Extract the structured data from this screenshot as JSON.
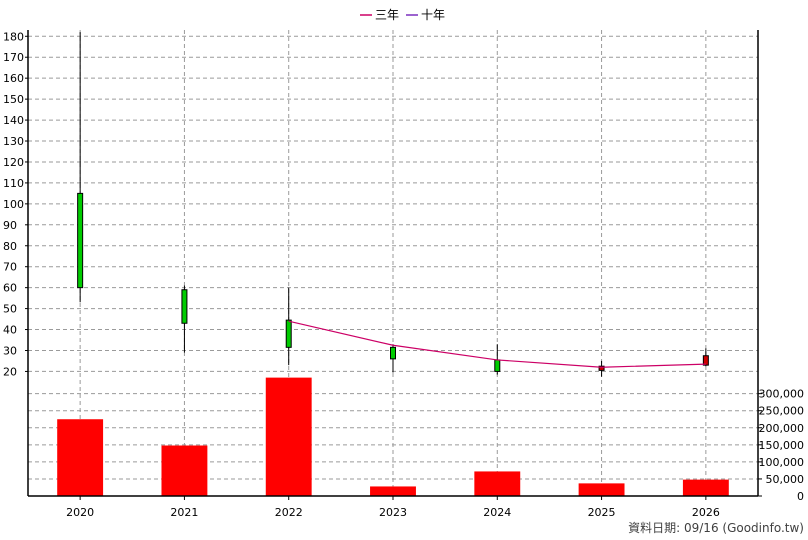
{
  "chart_data": {
    "type": "bar",
    "legend_position": "top-center",
    "grid": true,
    "categories": [
      "2020",
      "2021",
      "2022",
      "2023",
      "2024",
      "2025",
      "2026"
    ],
    "legend": [
      {
        "name": "三年",
        "color": "#cc0066"
      },
      {
        "name": "十年",
        "color": "#7b2fbf"
      }
    ],
    "price_axis": {
      "ticks": [
        "20",
        "30",
        "40",
        "50",
        "60",
        "70",
        "80",
        "90",
        "100",
        "110",
        "120",
        "130",
        "140",
        "150",
        "160",
        "170",
        "180"
      ],
      "range": [
        14,
        183
      ]
    },
    "volume_axis": {
      "ticks": [
        "0",
        "50,000",
        "100,000",
        "150,000",
        "200,000",
        "250,000",
        "300,000"
      ],
      "range": [
        0,
        340000
      ]
    },
    "candles": [
      {
        "year": "2020",
        "open": 60,
        "high": 182,
        "low": 53,
        "close": 105,
        "color": "#00cc00"
      },
      {
        "year": "2021",
        "open": 43,
        "high": 61,
        "low": 29,
        "close": 59,
        "color": "#00cc00"
      },
      {
        "year": "2022",
        "open": 31.5,
        "high": 60,
        "low": 23,
        "close": 44.5,
        "color": "#00cc00"
      },
      {
        "year": "2023",
        "open": 26,
        "high": 33,
        "low": 19.5,
        "close": 31.5,
        "color": "#00cc00"
      },
      {
        "year": "2024",
        "open": 20,
        "high": 33,
        "low": 18.5,
        "close": 25.5,
        "color": "#00cc00"
      },
      {
        "year": "2025",
        "open": 22.5,
        "high": 25,
        "low": 17.5,
        "close": 20.5,
        "color": "#cc0000"
      },
      {
        "year": "2026",
        "open": 23,
        "high": 31,
        "low": 22.5,
        "close": 27.5,
        "color": "#cc0000"
      }
    ],
    "line_series": [
      {
        "name": "三年",
        "color": "#cc0066",
        "x": [
          "2022",
          "2023",
          "2024",
          "2025",
          "2026"
        ],
        "values": [
          44,
          32.5,
          25.5,
          22,
          23.5
        ]
      }
    ],
    "volume": [
      {
        "year": "2020",
        "value": 225000
      },
      {
        "year": "2021",
        "value": 148000
      },
      {
        "year": "2022",
        "value": 347000
      },
      {
        "year": "2023",
        "value": 28000
      },
      {
        "year": "2024",
        "value": 72000
      },
      {
        "year": "2025",
        "value": 37000
      },
      {
        "year": "2026",
        "value": 48000
      }
    ],
    "volume_color": "#ff0000",
    "footer": "資料日期: 09/16  (Goodinfo.tw)"
  }
}
